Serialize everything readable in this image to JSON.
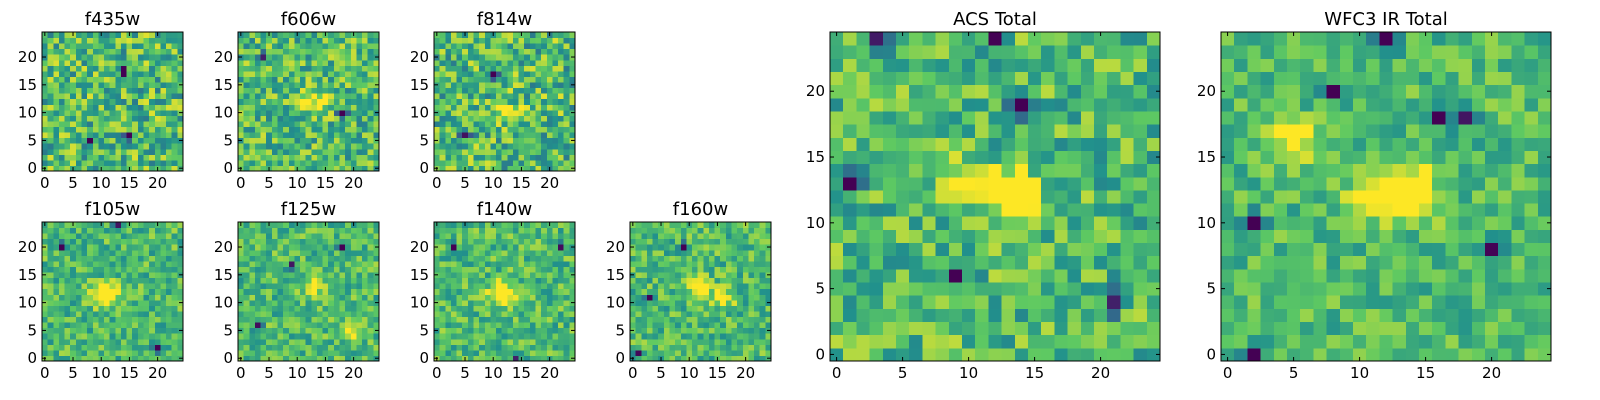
{
  "colormap": [
    "#440154",
    "#3b528b",
    "#21918c",
    "#5ec962",
    "#fde725"
  ],
  "chart_data": [
    {
      "type": "heatmap",
      "title": "f435w",
      "grid_size": 25,
      "xlim": [
        0,
        24
      ],
      "ylim": [
        0,
        24
      ],
      "xticks": [
        "0",
        "5",
        "10",
        "15",
        "20"
      ],
      "yticks": [
        "0",
        "5",
        "10",
        "15",
        "20"
      ],
      "hot_spots": [],
      "cold_spots": [
        [
          14,
          18
        ],
        [
          14,
          17
        ],
        [
          8,
          5
        ],
        [
          15,
          6
        ]
      ],
      "noise": 0.5
    },
    {
      "type": "heatmap",
      "title": "f606w",
      "grid_size": 25,
      "xlim": [
        0,
        24
      ],
      "ylim": [
        0,
        24
      ],
      "xticks": [
        "0",
        "5",
        "10",
        "15",
        "20"
      ],
      "yticks": [
        "0",
        "5",
        "10",
        "15",
        "20"
      ],
      "hot_spots": [
        [
          11,
          12
        ],
        [
          14,
          12
        ]
      ],
      "cold_spots": [
        [
          4,
          20
        ],
        [
          18,
          10
        ]
      ],
      "noise": 0.45
    },
    {
      "type": "heatmap",
      "title": "f814w",
      "grid_size": 25,
      "xlim": [
        0,
        24
      ],
      "ylim": [
        0,
        24
      ],
      "xticks": [
        "0",
        "5",
        "10",
        "15",
        "20"
      ],
      "yticks": [
        "0",
        "5",
        "10",
        "15",
        "20"
      ],
      "hot_spots": [
        [
          13,
          10
        ]
      ],
      "cold_spots": [
        [
          5,
          6
        ],
        [
          10,
          17
        ]
      ],
      "noise": 0.5
    },
    {
      "type": "heatmap",
      "title": "f105w",
      "grid_size": 25,
      "xlim": [
        0,
        24
      ],
      "ylim": [
        0,
        24
      ],
      "xticks": [
        "0",
        "5",
        "10",
        "15",
        "20"
      ],
      "yticks": [
        "0",
        "5",
        "10",
        "15",
        "20"
      ],
      "hot_spots": [
        [
          10,
          11
        ],
        [
          11,
          12
        ]
      ],
      "cold_spots": [
        [
          13,
          24
        ],
        [
          3,
          20
        ],
        [
          20,
          2
        ]
      ],
      "noise": 0.35
    },
    {
      "type": "heatmap",
      "title": "f125w",
      "grid_size": 25,
      "xlim": [
        0,
        24
      ],
      "ylim": [
        0,
        24
      ],
      "xticks": [
        "0",
        "5",
        "10",
        "15",
        "20"
      ],
      "yticks": [
        "0",
        "5",
        "10",
        "15",
        "20"
      ],
      "hot_spots": [
        [
          13,
          13
        ],
        [
          20,
          5
        ]
      ],
      "cold_spots": [
        [
          9,
          17
        ],
        [
          3,
          6
        ],
        [
          18,
          20
        ]
      ],
      "noise": 0.35
    },
    {
      "type": "heatmap",
      "title": "f140w",
      "grid_size": 25,
      "xlim": [
        0,
        24
      ],
      "ylim": [
        0,
        24
      ],
      "xticks": [
        "0",
        "5",
        "10",
        "15",
        "20"
      ],
      "yticks": [
        "0",
        "5",
        "10",
        "15",
        "20"
      ],
      "hot_spots": [
        [
          11,
          12
        ],
        [
          12,
          11
        ]
      ],
      "cold_spots": [
        [
          14,
          0
        ],
        [
          3,
          20
        ],
        [
          22,
          20
        ]
      ],
      "noise": 0.35
    },
    {
      "type": "heatmap",
      "title": "f160w",
      "grid_size": 25,
      "xlim": [
        0,
        24
      ],
      "ylim": [
        0,
        24
      ],
      "xticks": [
        "0",
        "5",
        "10",
        "15",
        "20"
      ],
      "yticks": [
        "0",
        "5",
        "10",
        "15",
        "20"
      ],
      "hot_spots": [
        [
          12,
          13
        ],
        [
          16,
          11
        ]
      ],
      "cold_spots": [
        [
          9,
          20
        ],
        [
          3,
          11
        ],
        [
          1,
          1
        ]
      ],
      "noise": 0.35
    },
    {
      "type": "heatmap",
      "title": "ACS Total",
      "grid_size": 25,
      "xlim": [
        0,
        24
      ],
      "ylim": [
        0,
        24
      ],
      "xticks": [
        "0",
        "5",
        "10",
        "15",
        "20"
      ],
      "yticks": [
        "0",
        "5",
        "10",
        "15",
        "20"
      ],
      "hot_spots": [
        [
          10,
          13
        ],
        [
          13,
          12
        ],
        [
          14,
          12
        ]
      ],
      "cold_spots": [
        [
          14,
          19
        ],
        [
          9,
          6
        ],
        [
          21,
          4
        ],
        [
          1,
          13
        ],
        [
          3,
          24
        ],
        [
          12,
          24
        ]
      ],
      "noise": 0.4
    },
    {
      "type": "heatmap",
      "title": "WFC3 IR Total",
      "grid_size": 25,
      "xlim": [
        0,
        24
      ],
      "ylim": [
        0,
        24
      ],
      "xticks": [
        "0",
        "5",
        "10",
        "15",
        "20"
      ],
      "yticks": [
        "0",
        "5",
        "10",
        "15",
        "20"
      ],
      "hot_spots": [
        [
          11,
          12
        ],
        [
          13,
          13
        ],
        [
          14,
          12
        ],
        [
          5,
          16
        ]
      ],
      "cold_spots": [
        [
          8,
          20
        ],
        [
          2,
          10
        ],
        [
          20,
          8
        ],
        [
          2,
          0
        ],
        [
          12,
          24
        ],
        [
          16,
          18
        ],
        [
          18,
          18
        ]
      ],
      "noise": 0.3
    }
  ]
}
